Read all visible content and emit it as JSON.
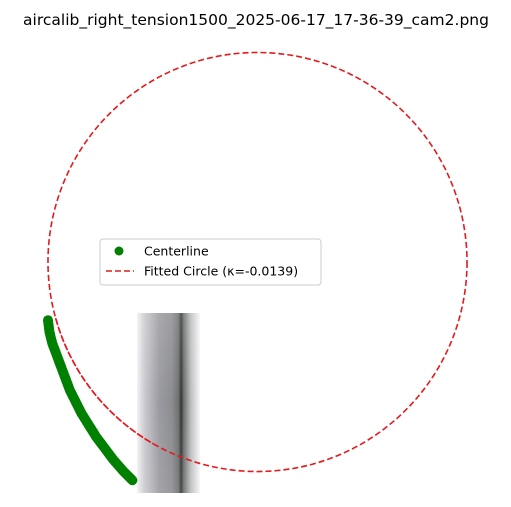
{
  "chart_data": {
    "type": "scatter",
    "title": "aircalib_right_tension1500_2025-06-17_17-36-39_cam2.png",
    "xlabel": "",
    "ylabel": "",
    "axes_visible": false,
    "grid": false,
    "legend_placement": "center-left",
    "background_image": "grayscale camera frame with a vertical metal rod",
    "series": [
      {
        "name": "Centerline",
        "kind": "markers",
        "color": "#008000",
        "points": [
          [
            -72,
            20
          ],
          [
            -71.5,
            24
          ],
          [
            -70.5,
            28
          ],
          [
            -69,
            32
          ],
          [
            -67.5,
            36
          ],
          [
            -66,
            40
          ],
          [
            -64.5,
            44
          ],
          [
            -62.5,
            48
          ],
          [
            -60.5,
            52
          ],
          [
            -58,
            56
          ],
          [
            -55.5,
            60
          ],
          [
            -52.5,
            64
          ],
          [
            -49.5,
            68
          ],
          [
            -46,
            72
          ],
          [
            -43,
            75
          ]
        ]
      },
      {
        "name": "Fitted Circle (κ=-0.0139)",
        "kind": "dashed-circle",
        "color": "#e41a1c",
        "center": [
          0,
          0
        ],
        "radius": 72
      }
    ]
  }
}
